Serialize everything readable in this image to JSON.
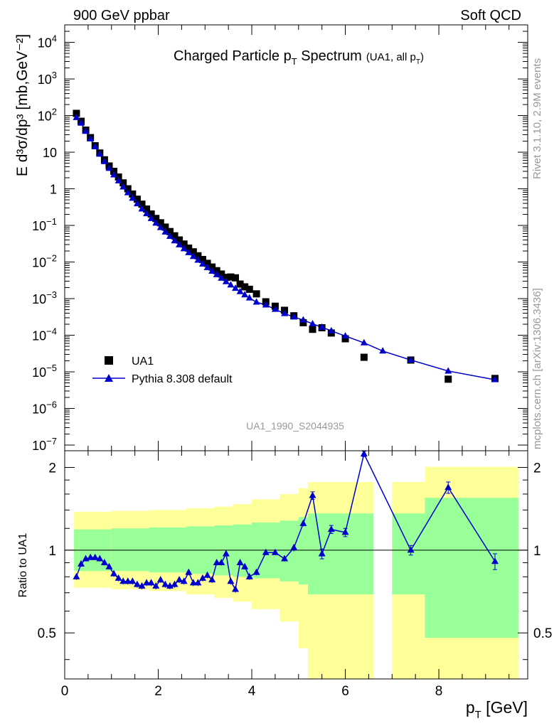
{
  "header": {
    "left": "900 GeV ppbar",
    "right": "Soft QCD"
  },
  "side_text": {
    "rivet": "Rivet 3.1.10,  2.9M events",
    "mcplots": "mcplots.cern.ch [arXiv:1306.3436]"
  },
  "chart_data": [
    {
      "type": "scatter",
      "title": "Charged Particle p",
      "title_sub": "T",
      "title_rest": " Spectrum",
      "title_note": "(UA1, all p",
      "title_note_sub": "T",
      "title_note_end": ")",
      "ylabel": "E d³σ/dp³ [mb,GeV⁻²]",
      "y_scale": "log",
      "ylim": [
        7e-08,
        30000
      ],
      "xlim": [
        0,
        9.9
      ],
      "y_ticks": [
        {
          "v": 10000,
          "base": "10",
          "exp": "4"
        },
        {
          "v": 1000,
          "base": "10",
          "exp": "3"
        },
        {
          "v": 100,
          "base": "10",
          "exp": "2"
        },
        {
          "v": 10,
          "base": "10",
          "exp": ""
        },
        {
          "v": 1,
          "base": "1",
          "exp": ""
        },
        {
          "v": 0.1,
          "base": "10",
          "exp": "−1"
        },
        {
          "v": 0.01,
          "base": "10",
          "exp": "−2"
        },
        {
          "v": 0.001,
          "base": "10",
          "exp": "−3"
        },
        {
          "v": 0.0001,
          "base": "10",
          "exp": "−4"
        },
        {
          "v": 1e-05,
          "base": "10",
          "exp": "−5"
        },
        {
          "v": 1e-06,
          "base": "10",
          "exp": "−6"
        },
        {
          "v": 1e-07,
          "base": "10",
          "exp": "−7"
        }
      ],
      "legend": [
        {
          "name": "UA1",
          "marker": "square",
          "color": "#000000"
        },
        {
          "name": "Pythia 8.308 default",
          "marker": "triangle",
          "color": "#0000cc"
        }
      ],
      "legend_position": "bottom-left",
      "watermark": "UA1_1990_S2044935",
      "series": [
        {
          "name": "UA1",
          "marker": "square",
          "color": "#000000",
          "points": [
            [
              0.25,
              115
            ],
            [
              0.35,
              70
            ],
            [
              0.45,
              40
            ],
            [
              0.55,
              25
            ],
            [
              0.65,
              15
            ],
            [
              0.75,
              9.5
            ],
            [
              0.85,
              6.2
            ],
            [
              0.95,
              4.2
            ],
            [
              1.05,
              3.0
            ],
            [
              1.15,
              2.1
            ],
            [
              1.25,
              1.45
            ],
            [
              1.35,
              1.0
            ],
            [
              1.45,
              0.72
            ],
            [
              1.55,
              0.52
            ],
            [
              1.65,
              0.38
            ],
            [
              1.75,
              0.28
            ],
            [
              1.85,
              0.205
            ],
            [
              1.95,
              0.155
            ],
            [
              2.05,
              0.118
            ],
            [
              2.15,
              0.09
            ],
            [
              2.25,
              0.068
            ],
            [
              2.35,
              0.052
            ],
            [
              2.45,
              0.04
            ],
            [
              2.55,
              0.031
            ],
            [
              2.65,
              0.024
            ],
            [
              2.75,
              0.019
            ],
            [
              2.85,
              0.0148
            ],
            [
              2.95,
              0.0117
            ],
            [
              3.05,
              0.0092
            ],
            [
              3.15,
              0.0073
            ],
            [
              3.25,
              0.0058
            ],
            [
              3.35,
              0.0047
            ],
            [
              3.45,
              0.0038
            ],
            [
              3.55,
              0.0039
            ],
            [
              3.65,
              0.0037
            ],
            [
              3.75,
              0.0025
            ],
            [
              3.85,
              0.0021
            ],
            [
              3.95,
              0.0018
            ],
            [
              4.1,
              0.00135
            ],
            [
              4.3,
              0.00082
            ],
            [
              4.5,
              0.00062
            ],
            [
              4.7,
              0.00048
            ],
            [
              4.9,
              0.00034
            ],
            [
              5.1,
              0.00022
            ],
            [
              5.3,
              0.000145
            ],
            [
              5.5,
              0.00016
            ],
            [
              5.7,
              0.000115
            ],
            [
              6.0,
              8e-05
            ],
            [
              6.4,
              2.5e-05
            ],
            [
              7.4,
              2.1e-05
            ],
            [
              8.2,
              6.3e-06
            ],
            [
              9.2,
              6.6e-06
            ]
          ]
        },
        {
          "name": "Pythia 8.308 default",
          "marker": "triangle",
          "color": "#0000cc",
          "points": [
            [
              0.25,
              88
            ],
            [
              0.35,
              62
            ],
            [
              0.45,
              37
            ],
            [
              0.55,
              23
            ],
            [
              0.65,
              14
            ],
            [
              0.75,
              8.8
            ],
            [
              0.85,
              5.5
            ],
            [
              0.95,
              3.6
            ],
            [
              1.05,
              2.4
            ],
            [
              1.15,
              1.65
            ],
            [
              1.25,
              1.12
            ],
            [
              1.35,
              0.78
            ],
            [
              1.45,
              0.55
            ],
            [
              1.55,
              0.39
            ],
            [
              1.65,
              0.28
            ],
            [
              1.75,
              0.208
            ],
            [
              1.85,
              0.154
            ],
            [
              1.95,
              0.115
            ],
            [
              2.05,
              0.087
            ],
            [
              2.15,
              0.066
            ],
            [
              2.25,
              0.05
            ],
            [
              2.35,
              0.038
            ],
            [
              2.45,
              0.0295
            ],
            [
              2.55,
              0.023
            ],
            [
              2.65,
              0.018
            ],
            [
              2.75,
              0.0142
            ],
            [
              2.85,
              0.0112
            ],
            [
              2.95,
              0.0088
            ],
            [
              3.05,
              0.007
            ],
            [
              3.15,
              0.0056
            ],
            [
              3.25,
              0.0045
            ],
            [
              3.35,
              0.0036
            ],
            [
              3.45,
              0.0029
            ],
            [
              3.55,
              0.00235
            ],
            [
              3.65,
              0.0019
            ],
            [
              3.75,
              0.00155
            ],
            [
              3.85,
              0.00127
            ],
            [
              3.95,
              0.00104
            ],
            [
              4.1,
              0.0008
            ],
            [
              4.3,
              0.00067
            ],
            [
              4.5,
              0.00051
            ],
            [
              4.7,
              0.00039
            ],
            [
              4.9,
              0.000315
            ],
            [
              5.1,
              0.00026
            ],
            [
              5.3,
              0.000205
            ],
            [
              5.5,
              0.000165
            ],
            [
              5.7,
              0.000132
            ],
            [
              6.0,
              9.5e-05
            ],
            [
              6.4,
              6.2e-05
            ],
            [
              6.8,
              3.7e-05
            ],
            [
              7.4,
              2.1e-05
            ],
            [
              8.2,
              1.05e-05
            ],
            [
              9.2,
              6.1e-06
            ]
          ]
        }
      ]
    },
    {
      "type": "line",
      "ylabel": "Ratio to UA1",
      "xlabel": "p",
      "xlabel_sub": "T",
      "xlabel_rest": " [GeV]",
      "y_scale": "log",
      "ylim": [
        0.34,
        2.3
      ],
      "xlim": [
        0,
        9.9
      ],
      "x_ticks": [
        "0",
        "2",
        "4",
        "6",
        "8"
      ],
      "x_tick_values": [
        0,
        2,
        4,
        6,
        8
      ],
      "y_ticks": [
        {
          "v": 0.5,
          "label": "0.5"
        },
        {
          "v": 1,
          "label": "1"
        },
        {
          "v": 2,
          "label": "2"
        }
      ],
      "reference_line": 1,
      "uncertainty_bands": [
        {
          "x0": 0.2,
          "x1": 0.3,
          "y_lo": 0.73,
          "y_hi": 1.38,
          "g_lo": 0.84,
          "g_hi": 1.19
        },
        {
          "x0": 0.3,
          "x1": 1.0,
          "y_lo": 0.73,
          "y_hi": 1.38,
          "g_lo": 0.84,
          "g_hi": 1.19
        },
        {
          "x0": 1.0,
          "x1": 1.8,
          "y_lo": 0.72,
          "y_hi": 1.39,
          "g_lo": 0.84,
          "g_hi": 1.2
        },
        {
          "x0": 1.8,
          "x1": 2.6,
          "y_lo": 0.71,
          "y_hi": 1.4,
          "g_lo": 0.83,
          "g_hi": 1.21
        },
        {
          "x0": 2.6,
          "x1": 3.2,
          "y_lo": 0.69,
          "y_hi": 1.42,
          "g_lo": 0.82,
          "g_hi": 1.22
        },
        {
          "x0": 3.2,
          "x1": 3.6,
          "y_lo": 0.67,
          "y_hi": 1.44,
          "g_lo": 0.81,
          "g_hi": 1.23
        },
        {
          "x0": 3.6,
          "x1": 4.0,
          "y_lo": 0.65,
          "y_hi": 1.47,
          "g_lo": 0.8,
          "g_hi": 1.24
        },
        {
          "x0": 4.0,
          "x1": 4.6,
          "y_lo": 0.61,
          "y_hi": 1.53,
          "g_lo": 0.79,
          "g_hi": 1.26
        },
        {
          "x0": 4.6,
          "x1": 5.0,
          "y_lo": 0.55,
          "y_hi": 1.6,
          "g_lo": 0.77,
          "g_hi": 1.28
        },
        {
          "x0": 5.0,
          "x1": 5.2,
          "y_lo": 0.44,
          "y_hi": 1.68,
          "g_lo": 0.75,
          "g_hi": 1.32
        },
        {
          "x0": 5.2,
          "x1": 6.6,
          "y_lo": 0.34,
          "y_hi": 1.77,
          "g_lo": 0.69,
          "g_hi": 1.36
        },
        {
          "x0": 7.0,
          "x1": 7.7,
          "y_lo": 0.34,
          "y_hi": 1.77,
          "g_lo": 0.69,
          "g_hi": 1.36
        },
        {
          "x0": 7.7,
          "x1": 9.7,
          "y_lo": 0.34,
          "y_hi": 2.01,
          "g_lo": 0.48,
          "g_hi": 1.55
        }
      ],
      "series": [
        {
          "name": "Pythia 8.308 default",
          "color": "#0000cc",
          "points": [
            [
              0.25,
              0.8
            ],
            [
              0.35,
              0.89
            ],
            [
              0.45,
              0.93
            ],
            [
              0.55,
              0.94
            ],
            [
              0.65,
              0.94
            ],
            [
              0.75,
              0.93
            ],
            [
              0.85,
              0.9
            ],
            [
              0.95,
              0.87
            ],
            [
              1.05,
              0.82
            ],
            [
              1.15,
              0.79
            ],
            [
              1.25,
              0.77
            ],
            [
              1.35,
              0.77
            ],
            [
              1.45,
              0.77
            ],
            [
              1.55,
              0.75
            ],
            [
              1.65,
              0.74
            ],
            [
              1.75,
              0.76
            ],
            [
              1.85,
              0.76
            ],
            [
              1.95,
              0.74
            ],
            [
              2.05,
              0.78
            ],
            [
              2.15,
              0.75
            ],
            [
              2.25,
              0.74
            ],
            [
              2.35,
              0.75
            ],
            [
              2.45,
              0.78
            ],
            [
              2.55,
              0.77
            ],
            [
              2.65,
              0.83
            ],
            [
              2.75,
              0.76
            ],
            [
              2.85,
              0.76
            ],
            [
              2.95,
              0.79
            ],
            [
              3.05,
              0.81
            ],
            [
              3.15,
              0.78
            ],
            [
              3.25,
              0.9
            ],
            [
              3.35,
              0.9
            ],
            [
              3.45,
              0.97
            ],
            [
              3.55,
              0.77
            ],
            [
              3.65,
              0.72
            ],
            [
              3.75,
              0.9
            ],
            [
              3.85,
              0.87
            ],
            [
              3.95,
              0.8
            ],
            [
              4.1,
              0.83
            ],
            [
              4.3,
              0.98
            ],
            [
              4.5,
              0.98
            ],
            [
              4.7,
              0.93
            ],
            [
              4.9,
              1.02
            ],
            [
              5.1,
              1.25
            ],
            [
              5.3,
              1.58
            ],
            [
              5.5,
              0.97
            ],
            [
              5.7,
              1.19
            ],
            [
              6.0,
              1.16
            ],
            [
              6.4,
              2.24
            ],
            [
              7.4,
              1.0
            ],
            [
              8.2,
              1.69
            ],
            [
              9.2,
              0.91
            ]
          ],
          "errors": [
            [
              0.25,
              0.02
            ],
            [
              0.35,
              0.02
            ],
            [
              0.45,
              0.02
            ],
            [
              0.55,
              0.02
            ],
            [
              0.65,
              0.02
            ],
            [
              0.75,
              0.02
            ],
            [
              0.85,
              0.02
            ],
            [
              0.95,
              0.02
            ],
            [
              1.05,
              0.02
            ],
            [
              1.15,
              0.02
            ],
            [
              1.25,
              0.02
            ],
            [
              1.35,
              0.02
            ],
            [
              1.45,
              0.02
            ],
            [
              1.55,
              0.02
            ],
            [
              1.65,
              0.02
            ],
            [
              1.75,
              0.02
            ],
            [
              1.85,
              0.02
            ],
            [
              1.95,
              0.02
            ],
            [
              2.05,
              0.02
            ],
            [
              2.15,
              0.02
            ],
            [
              2.25,
              0.02
            ],
            [
              2.35,
              0.02
            ],
            [
              2.45,
              0.02
            ],
            [
              2.55,
              0.02
            ],
            [
              2.65,
              0.02
            ],
            [
              2.75,
              0.02
            ],
            [
              2.85,
              0.02
            ],
            [
              2.95,
              0.02
            ],
            [
              3.05,
              0.02
            ],
            [
              3.15,
              0.02
            ],
            [
              3.25,
              0.02
            ],
            [
              3.35,
              0.02
            ],
            [
              3.45,
              0.02
            ],
            [
              3.55,
              0.02
            ],
            [
              3.65,
              0.02
            ],
            [
              3.75,
              0.02
            ],
            [
              3.85,
              0.02
            ],
            [
              3.95,
              0.02
            ],
            [
              4.1,
              0.02
            ],
            [
              4.3,
              0.02
            ],
            [
              4.5,
              0.02
            ],
            [
              4.7,
              0.02
            ],
            [
              4.9,
              0.03
            ],
            [
              5.1,
              0.03
            ],
            [
              5.3,
              0.05
            ],
            [
              5.5,
              0.04
            ],
            [
              5.7,
              0.04
            ],
            [
              6.0,
              0.04
            ],
            [
              6.4,
              0.05
            ],
            [
              7.4,
              0.04
            ],
            [
              8.2,
              0.08
            ],
            [
              9.2,
              0.06
            ]
          ]
        }
      ]
    }
  ]
}
